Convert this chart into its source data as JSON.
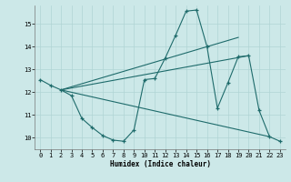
{
  "xlabel": "Humidex (Indice chaleur)",
  "xlim": [
    -0.5,
    23.5
  ],
  "ylim": [
    9.5,
    15.8
  ],
  "yticks": [
    10,
    11,
    12,
    13,
    14,
    15
  ],
  "xticks": [
    0,
    1,
    2,
    3,
    4,
    5,
    6,
    7,
    8,
    9,
    10,
    11,
    12,
    13,
    14,
    15,
    16,
    17,
    18,
    19,
    20,
    21,
    22,
    23
  ],
  "bg_color": "#cce8e8",
  "line_color": "#1e6b6b",
  "grid_color": "#b0d4d4",
  "main_curve": {
    "x": [
      0,
      1,
      2,
      3,
      4,
      5,
      6,
      7,
      8,
      9,
      10,
      11,
      12,
      13,
      14,
      15,
      16,
      17,
      18,
      19,
      20,
      21,
      22,
      23
    ],
    "y": [
      12.55,
      12.3,
      12.1,
      11.85,
      10.85,
      10.45,
      10.1,
      9.9,
      9.85,
      10.35,
      12.55,
      12.6,
      13.5,
      14.5,
      15.55,
      15.6,
      14.0,
      11.3,
      12.4,
      13.55,
      13.6,
      11.2,
      10.05,
      9.85
    ]
  },
  "trend_lines": [
    {
      "x": [
        2,
        19
      ],
      "y": [
        12.1,
        14.4
      ]
    },
    {
      "x": [
        2,
        20
      ],
      "y": [
        12.1,
        13.6
      ]
    },
    {
      "x": [
        2,
        22
      ],
      "y": [
        12.1,
        10.05
      ]
    }
  ]
}
